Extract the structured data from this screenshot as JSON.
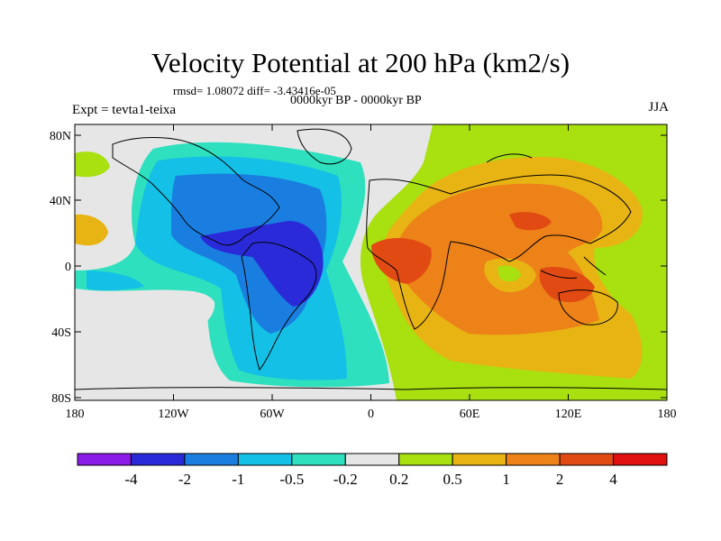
{
  "title": "Velocity Potential at 200 hPa (km2/s)",
  "stats": "rmsd= 1.08072 diff= -3.43416e-05",
  "subtitle": "0000kyr BP - 0000kyr BP",
  "expt": "Expt = tevta1-teixa",
  "season": "JJA",
  "lat_ticks": [
    "80N",
    "40N",
    "0",
    "40S",
    "80S"
  ],
  "lon_ticks": [
    "180",
    "120W",
    "60W",
    "0",
    "60E",
    "120E",
    "180"
  ],
  "colorbar": {
    "colors": [
      "#8a1de8",
      "#2a2ad8",
      "#1a7ee0",
      "#14c0e6",
      "#2ee0be",
      "#e6e6e6",
      "#a8e010",
      "#e8b414",
      "#ec8218",
      "#e24a14",
      "#e01010"
    ],
    "labels": [
      "-4",
      "-2",
      "-1",
      "-0.5",
      "-0.2",
      "0.2",
      "0.5",
      "1",
      "2",
      "4"
    ]
  }
}
